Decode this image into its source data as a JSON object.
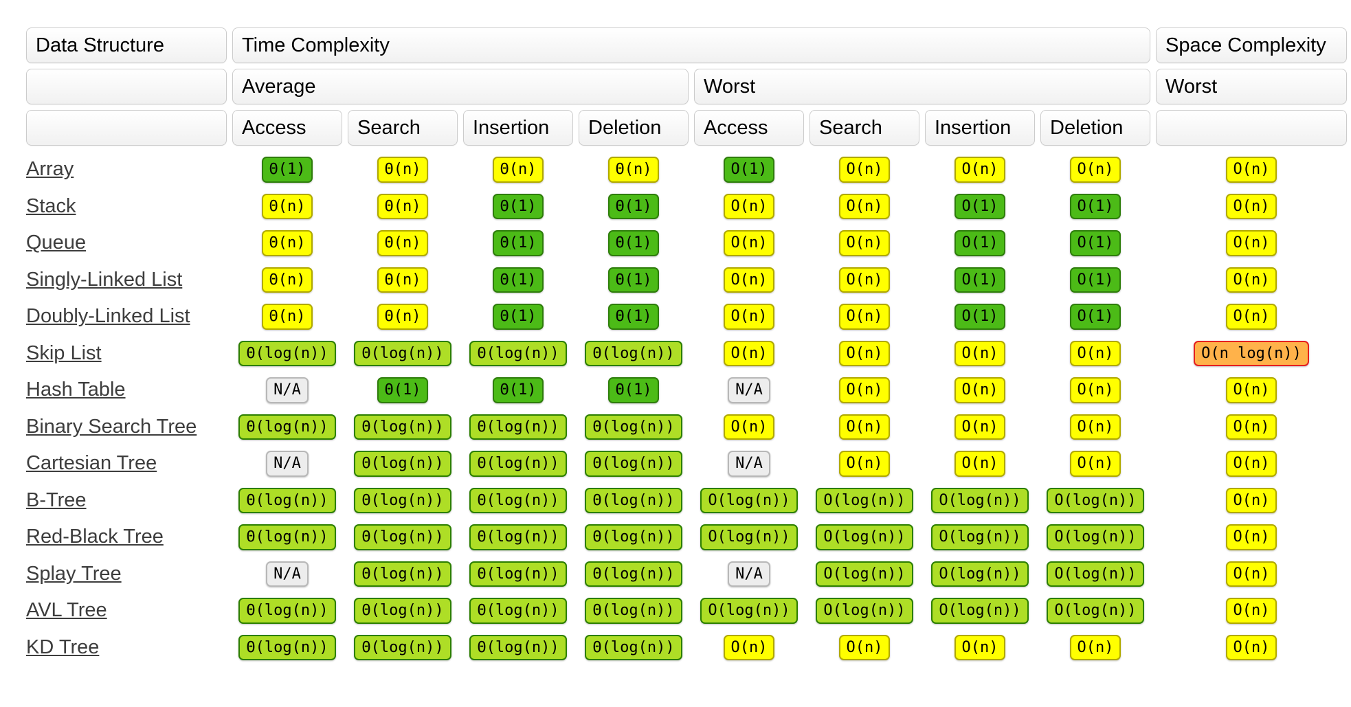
{
  "header": {
    "data_structure": "Data Structure",
    "time_complexity": "Time Complexity",
    "space_complexity": "Space Complexity",
    "average": "Average",
    "worst": "Worst",
    "space_worst": "Worst",
    "ops": [
      "Access",
      "Search",
      "Insertion",
      "Deletion"
    ]
  },
  "levels": {
    "excellent": {
      "bg": "#4cbb17",
      "border": "#2e7d0b"
    },
    "good": {
      "bg": "#aede26",
      "border": "#2c7f00"
    },
    "fair": {
      "bg": "#ffff00",
      "border": "#b0a900"
    },
    "bad": {
      "bg": "#ffb24a",
      "border": "#e51f1f"
    },
    "na": {
      "bg": "#ededed",
      "border": "#b8b8b8"
    }
  },
  "rows": [
    {
      "name": "Array",
      "cells": [
        {
          "text": "Θ(1)",
          "level": "excellent"
        },
        {
          "text": "Θ(n)",
          "level": "fair"
        },
        {
          "text": "Θ(n)",
          "level": "fair"
        },
        {
          "text": "Θ(n)",
          "level": "fair"
        },
        {
          "text": "O(1)",
          "level": "excellent"
        },
        {
          "text": "O(n)",
          "level": "fair"
        },
        {
          "text": "O(n)",
          "level": "fair"
        },
        {
          "text": "O(n)",
          "level": "fair"
        },
        {
          "text": "O(n)",
          "level": "fair"
        }
      ]
    },
    {
      "name": "Stack",
      "cells": [
        {
          "text": "Θ(n)",
          "level": "fair"
        },
        {
          "text": "Θ(n)",
          "level": "fair"
        },
        {
          "text": "Θ(1)",
          "level": "excellent"
        },
        {
          "text": "Θ(1)",
          "level": "excellent"
        },
        {
          "text": "O(n)",
          "level": "fair"
        },
        {
          "text": "O(n)",
          "level": "fair"
        },
        {
          "text": "O(1)",
          "level": "excellent"
        },
        {
          "text": "O(1)",
          "level": "excellent"
        },
        {
          "text": "O(n)",
          "level": "fair"
        }
      ]
    },
    {
      "name": "Queue",
      "cells": [
        {
          "text": "Θ(n)",
          "level": "fair"
        },
        {
          "text": "Θ(n)",
          "level": "fair"
        },
        {
          "text": "Θ(1)",
          "level": "excellent"
        },
        {
          "text": "Θ(1)",
          "level": "excellent"
        },
        {
          "text": "O(n)",
          "level": "fair"
        },
        {
          "text": "O(n)",
          "level": "fair"
        },
        {
          "text": "O(1)",
          "level": "excellent"
        },
        {
          "text": "O(1)",
          "level": "excellent"
        },
        {
          "text": "O(n)",
          "level": "fair"
        }
      ]
    },
    {
      "name": "Singly-Linked List",
      "cells": [
        {
          "text": "Θ(n)",
          "level": "fair"
        },
        {
          "text": "Θ(n)",
          "level": "fair"
        },
        {
          "text": "Θ(1)",
          "level": "excellent"
        },
        {
          "text": "Θ(1)",
          "level": "excellent"
        },
        {
          "text": "O(n)",
          "level": "fair"
        },
        {
          "text": "O(n)",
          "level": "fair"
        },
        {
          "text": "O(1)",
          "level": "excellent"
        },
        {
          "text": "O(1)",
          "level": "excellent"
        },
        {
          "text": "O(n)",
          "level": "fair"
        }
      ]
    },
    {
      "name": "Doubly-Linked List",
      "cells": [
        {
          "text": "Θ(n)",
          "level": "fair"
        },
        {
          "text": "Θ(n)",
          "level": "fair"
        },
        {
          "text": "Θ(1)",
          "level": "excellent"
        },
        {
          "text": "Θ(1)",
          "level": "excellent"
        },
        {
          "text": "O(n)",
          "level": "fair"
        },
        {
          "text": "O(n)",
          "level": "fair"
        },
        {
          "text": "O(1)",
          "level": "excellent"
        },
        {
          "text": "O(1)",
          "level": "excellent"
        },
        {
          "text": "O(n)",
          "level": "fair"
        }
      ]
    },
    {
      "name": "Skip List",
      "cells": [
        {
          "text": "Θ(log(n))",
          "level": "good"
        },
        {
          "text": "Θ(log(n))",
          "level": "good"
        },
        {
          "text": "Θ(log(n))",
          "level": "good"
        },
        {
          "text": "Θ(log(n))",
          "level": "good"
        },
        {
          "text": "O(n)",
          "level": "fair"
        },
        {
          "text": "O(n)",
          "level": "fair"
        },
        {
          "text": "O(n)",
          "level": "fair"
        },
        {
          "text": "O(n)",
          "level": "fair"
        },
        {
          "text": "O(n log(n))",
          "level": "bad"
        }
      ]
    },
    {
      "name": "Hash Table",
      "cells": [
        {
          "text": "N/A",
          "level": "na"
        },
        {
          "text": "Θ(1)",
          "level": "excellent"
        },
        {
          "text": "Θ(1)",
          "level": "excellent"
        },
        {
          "text": "Θ(1)",
          "level": "excellent"
        },
        {
          "text": "N/A",
          "level": "na"
        },
        {
          "text": "O(n)",
          "level": "fair"
        },
        {
          "text": "O(n)",
          "level": "fair"
        },
        {
          "text": "O(n)",
          "level": "fair"
        },
        {
          "text": "O(n)",
          "level": "fair"
        }
      ]
    },
    {
      "name": "Binary Search Tree",
      "cells": [
        {
          "text": "Θ(log(n))",
          "level": "good"
        },
        {
          "text": "Θ(log(n))",
          "level": "good"
        },
        {
          "text": "Θ(log(n))",
          "level": "good"
        },
        {
          "text": "Θ(log(n))",
          "level": "good"
        },
        {
          "text": "O(n)",
          "level": "fair"
        },
        {
          "text": "O(n)",
          "level": "fair"
        },
        {
          "text": "O(n)",
          "level": "fair"
        },
        {
          "text": "O(n)",
          "level": "fair"
        },
        {
          "text": "O(n)",
          "level": "fair"
        }
      ]
    },
    {
      "name": "Cartesian Tree",
      "cells": [
        {
          "text": "N/A",
          "level": "na"
        },
        {
          "text": "Θ(log(n))",
          "level": "good"
        },
        {
          "text": "Θ(log(n))",
          "level": "good"
        },
        {
          "text": "Θ(log(n))",
          "level": "good"
        },
        {
          "text": "N/A",
          "level": "na"
        },
        {
          "text": "O(n)",
          "level": "fair"
        },
        {
          "text": "O(n)",
          "level": "fair"
        },
        {
          "text": "O(n)",
          "level": "fair"
        },
        {
          "text": "O(n)",
          "level": "fair"
        }
      ]
    },
    {
      "name": "B-Tree",
      "cells": [
        {
          "text": "Θ(log(n))",
          "level": "good"
        },
        {
          "text": "Θ(log(n))",
          "level": "good"
        },
        {
          "text": "Θ(log(n))",
          "level": "good"
        },
        {
          "text": "Θ(log(n))",
          "level": "good"
        },
        {
          "text": "O(log(n))",
          "level": "good"
        },
        {
          "text": "O(log(n))",
          "level": "good"
        },
        {
          "text": "O(log(n))",
          "level": "good"
        },
        {
          "text": "O(log(n))",
          "level": "good"
        },
        {
          "text": "O(n)",
          "level": "fair"
        }
      ]
    },
    {
      "name": "Red-Black Tree",
      "cells": [
        {
          "text": "Θ(log(n))",
          "level": "good"
        },
        {
          "text": "Θ(log(n))",
          "level": "good"
        },
        {
          "text": "Θ(log(n))",
          "level": "good"
        },
        {
          "text": "Θ(log(n))",
          "level": "good"
        },
        {
          "text": "O(log(n))",
          "level": "good"
        },
        {
          "text": "O(log(n))",
          "level": "good"
        },
        {
          "text": "O(log(n))",
          "level": "good"
        },
        {
          "text": "O(log(n))",
          "level": "good"
        },
        {
          "text": "O(n)",
          "level": "fair"
        }
      ]
    },
    {
      "name": "Splay Tree",
      "cells": [
        {
          "text": "N/A",
          "level": "na"
        },
        {
          "text": "Θ(log(n))",
          "level": "good"
        },
        {
          "text": "Θ(log(n))",
          "level": "good"
        },
        {
          "text": "Θ(log(n))",
          "level": "good"
        },
        {
          "text": "N/A",
          "level": "na"
        },
        {
          "text": "O(log(n))",
          "level": "good"
        },
        {
          "text": "O(log(n))",
          "level": "good"
        },
        {
          "text": "O(log(n))",
          "level": "good"
        },
        {
          "text": "O(n)",
          "level": "fair"
        }
      ]
    },
    {
      "name": "AVL Tree",
      "cells": [
        {
          "text": "Θ(log(n))",
          "level": "good"
        },
        {
          "text": "Θ(log(n))",
          "level": "good"
        },
        {
          "text": "Θ(log(n))",
          "level": "good"
        },
        {
          "text": "Θ(log(n))",
          "level": "good"
        },
        {
          "text": "O(log(n))",
          "level": "good"
        },
        {
          "text": "O(log(n))",
          "level": "good"
        },
        {
          "text": "O(log(n))",
          "level": "good"
        },
        {
          "text": "O(log(n))",
          "level": "good"
        },
        {
          "text": "O(n)",
          "level": "fair"
        }
      ]
    },
    {
      "name": "KD Tree",
      "cells": [
        {
          "text": "Θ(log(n))",
          "level": "good"
        },
        {
          "text": "Θ(log(n))",
          "level": "good"
        },
        {
          "text": "Θ(log(n))",
          "level": "good"
        },
        {
          "text": "Θ(log(n))",
          "level": "good"
        },
        {
          "text": "O(n)",
          "level": "fair"
        },
        {
          "text": "O(n)",
          "level": "fair"
        },
        {
          "text": "O(n)",
          "level": "fair"
        },
        {
          "text": "O(n)",
          "level": "fair"
        },
        {
          "text": "O(n)",
          "level": "fair"
        }
      ]
    }
  ]
}
